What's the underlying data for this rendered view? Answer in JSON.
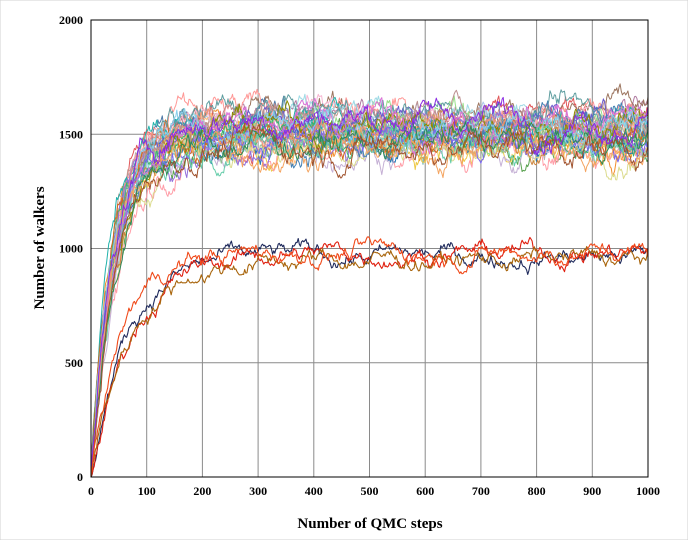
{
  "chart_data": {
    "type": "line",
    "title": "",
    "xlabel": "Number of QMC steps",
    "ylabel": "Number of walkers",
    "xlim": [
      0,
      1000
    ],
    "ylim": [
      0,
      2000
    ],
    "xticks": [
      0,
      100,
      200,
      300,
      400,
      500,
      600,
      700,
      800,
      900,
      1000
    ],
    "yticks": [
      0,
      500,
      1000,
      1500,
      2000
    ],
    "grid": true,
    "legend": "none",
    "groups": [
      {
        "description": "upper bundle of many walker trajectories",
        "count": 40,
        "rise_steps": 100,
        "plateau": 1520,
        "band": [
          1300,
          1850
        ]
      },
      {
        "description": "lower group of four walker trajectories",
        "count": 4,
        "rise_steps": 150,
        "plateau": 960,
        "band": [
          850,
          1120
        ]
      }
    ],
    "series_colors": [
      "#4e79a7",
      "#f28e2b",
      "#59a14f",
      "#e15759",
      "#76b7b2",
      "#edc948",
      "#b07aa1",
      "#ff9da7",
      "#9c755f",
      "#bab0ac",
      "#1f77b4",
      "#aec7e8",
      "#ffbb78",
      "#98df8a",
      "#ff9896",
      "#c5b0d5",
      "#c49c94",
      "#f7b6d2",
      "#dbdb8d",
      "#9edae5",
      "#6a5acd",
      "#8fbc8f",
      "#cd853f",
      "#20b2aa",
      "#9370db",
      "#3cb371",
      "#d2691e",
      "#5f9ea0",
      "#bc8f8f",
      "#4682b4",
      "#e9967a",
      "#8b8b00",
      "#7b68ee",
      "#66cdaa",
      "#da70d6",
      "#87ceeb",
      "#f4a460",
      "#2e8b57",
      "#a0522d",
      "#8a2be2"
    ],
    "lower_colors": [
      "#1f2a5c",
      "#e02010",
      "#a8650c",
      "#f04a1a"
    ]
  }
}
